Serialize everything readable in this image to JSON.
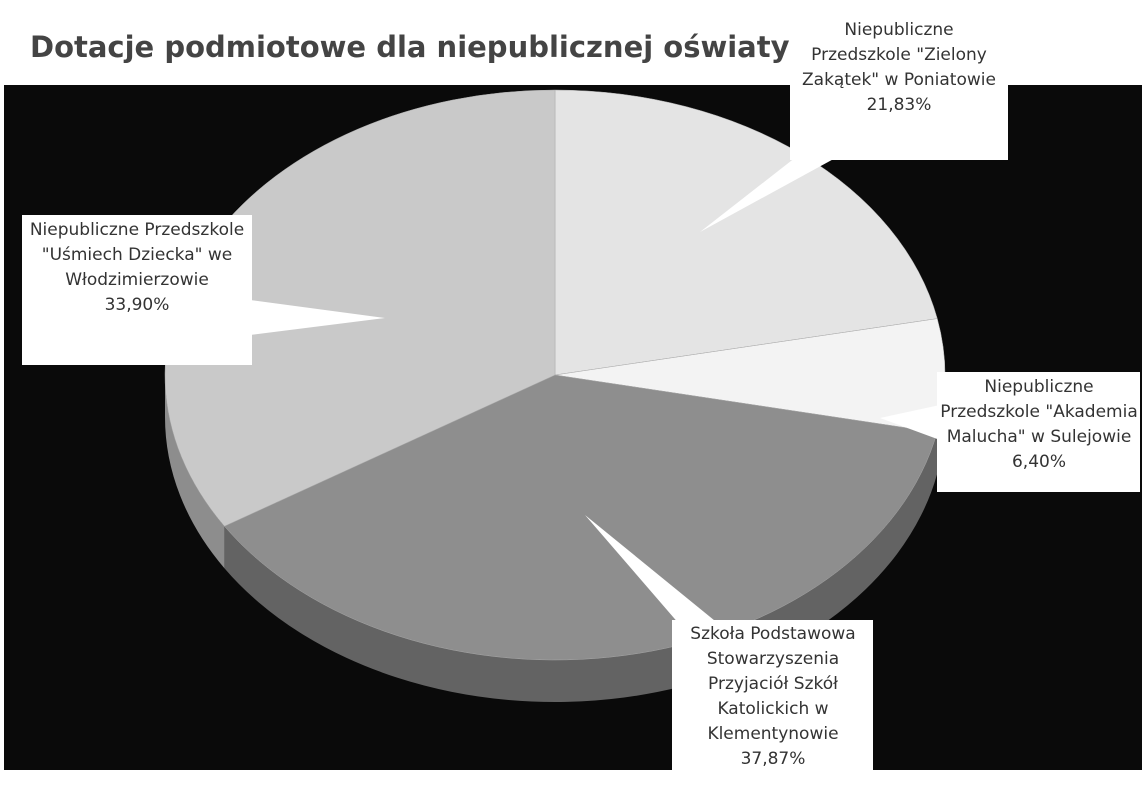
{
  "chart_data": {
    "type": "pie",
    "title": "Dotacje podmiotowe dla niepublicznej oświaty",
    "categories": [
      "Niepubliczne Przedszkole \"Zielony Zakątek\" w Poniatowie",
      "Niepubliczne Przedszkole \"Akademia Malucha\" w Sulejowie",
      "Szkoła Podstawowa Stowarzyszenia Przyjaciół Szkół Katolickich w Klementynowie",
      "Niepubliczne Przedszkole \"Uśmiech Dziecka\" we Włodzimierzowie"
    ],
    "values": [
      21.83,
      6.4,
      37.87,
      33.9
    ],
    "value_labels": [
      "21,83%",
      "6,40%",
      "37,87%",
      "33,90%"
    ],
    "colors": [
      "#e4e4e4",
      "#f3f3f3",
      "#8e8e8e",
      "#c9c9c9"
    ]
  }
}
